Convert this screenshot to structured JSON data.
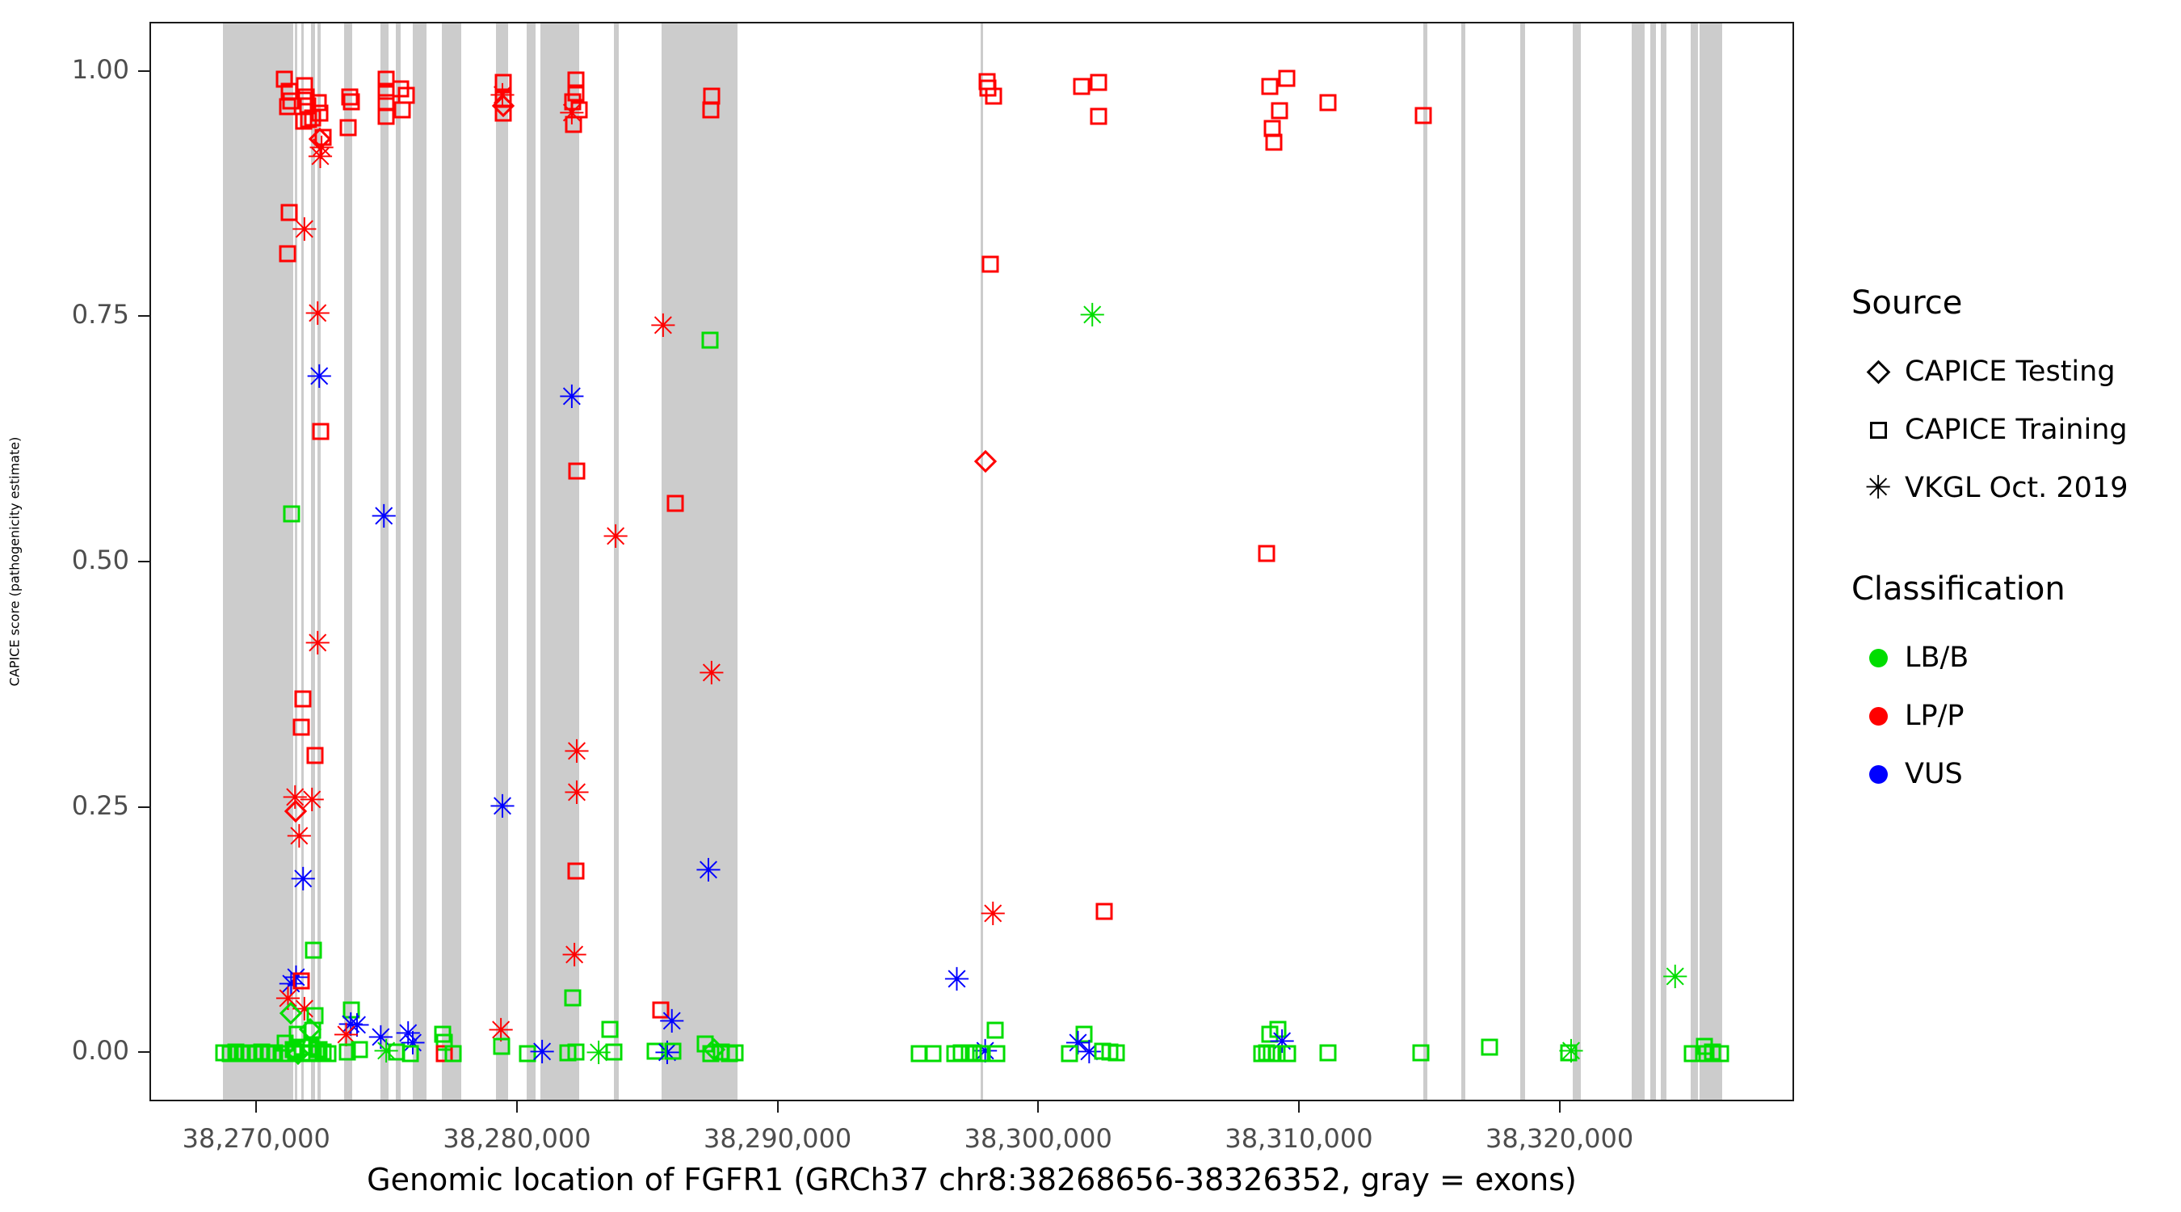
{
  "figure": {
    "x_axis_title": "Genomic location of FGFR1 (GRCh37 chr8:38268656-38326352, gray = exons)",
    "y_axis_title": "CAPICE score (pathogenicity estimate)"
  },
  "legend": {
    "source_title": "Source",
    "source_items": [
      {
        "label": "CAPICE Testing",
        "shape": "diamond"
      },
      {
        "label": "CAPICE Training",
        "shape": "square"
      },
      {
        "label": "VKGL Oct. 2019",
        "shape": "asterisk"
      }
    ],
    "classification_title": "Classification",
    "classification_items": [
      {
        "label": "LB/B",
        "color": "#00dd00"
      },
      {
        "label": "LP/P",
        "color": "#ff0000"
      },
      {
        "label": "VUS",
        "color": "#0000ff"
      }
    ]
  },
  "chart_data": {
    "type": "scatter",
    "xlabel": "Genomic location of FGFR1 (GRCh37 chr8:38268656-38326352, gray = exons)",
    "ylabel": "CAPICE score (pathogenicity estimate)",
    "x_domain": [
      38265900,
      38329000
    ],
    "y_domain": [
      -0.05,
      1.05
    ],
    "grid": false,
    "legend_position": "right",
    "x_ticks": [
      {
        "value": 38270000,
        "label": "38,270,000"
      },
      {
        "value": 38280000,
        "label": "38,280,000"
      },
      {
        "value": 38290000,
        "label": "38,290,000"
      },
      {
        "value": 38300000,
        "label": "38,300,000"
      },
      {
        "value": 38310000,
        "label": "38,310,000"
      },
      {
        "value": 38320000,
        "label": "38,320,000"
      }
    ],
    "y_ticks": [
      {
        "value": 0.0,
        "label": "0.00"
      },
      {
        "value": 0.25,
        "label": "0.25"
      },
      {
        "value": 0.5,
        "label": "0.50"
      },
      {
        "value": 0.75,
        "label": "0.75"
      },
      {
        "value": 1.0,
        "label": "1.00"
      }
    ],
    "exon_color": "#cccccc",
    "exons": [
      [
        38268656,
        38271350
      ],
      [
        38271430,
        38271520
      ],
      [
        38271650,
        38271760
      ],
      [
        38272050,
        38272200
      ],
      [
        38272290,
        38272420
      ],
      [
        38273300,
        38273620
      ],
      [
        38274700,
        38275020
      ],
      [
        38275300,
        38275480
      ],
      [
        38275950,
        38276480
      ],
      [
        38277050,
        38277800
      ],
      [
        38279130,
        38279600
      ],
      [
        38280300,
        38280640
      ],
      [
        38280850,
        38282330
      ],
      [
        38283660,
        38283850
      ],
      [
        38285480,
        38288400
      ],
      [
        38297720,
        38297820
      ],
      [
        38314700,
        38314880
      ],
      [
        38316160,
        38316330
      ],
      [
        38318420,
        38318620
      ],
      [
        38320440,
        38320760
      ],
      [
        38322700,
        38323200
      ],
      [
        38323410,
        38323630
      ],
      [
        38323810,
        38324030
      ],
      [
        38324960,
        38325240
      ],
      [
        38325300,
        38326170
      ]
    ],
    "class_colors": {
      "b": "#00dd00",
      "p": "#ff0000",
      "v": "#0000ff"
    },
    "class_names": {
      "b": "LB/B",
      "p": "LP/P",
      "v": "VUS"
    },
    "source_shapes": {
      "d": "diamond",
      "s": "square",
      "a": "asterisk"
    },
    "source_names": {
      "d": "CAPICE Testing",
      "s": "CAPICE Training",
      "a": "VKGL Oct. 2019"
    },
    "point_format": [
      "genomic_position",
      "capice_score",
      "classification",
      "source"
    ],
    "points": [
      [
        38271000,
        0.993,
        "p",
        "s"
      ],
      [
        38271210,
        0.981,
        "p",
        "s"
      ],
      [
        38271780,
        0.987,
        "p",
        "s"
      ],
      [
        38271270,
        0.971,
        "p",
        "s"
      ],
      [
        38271150,
        0.965,
        "p",
        "s"
      ],
      [
        38271840,
        0.975,
        "p",
        "s"
      ],
      [
        38271900,
        0.966,
        "p",
        "s"
      ],
      [
        38272300,
        0.969,
        "p",
        "s"
      ],
      [
        38272390,
        0.959,
        "p",
        "s"
      ],
      [
        38271750,
        0.95,
        "p",
        "s"
      ],
      [
        38271930,
        0.952,
        "p",
        "s"
      ],
      [
        38272090,
        0.954,
        "p",
        "s"
      ],
      [
        38272500,
        0.934,
        "p",
        "s"
      ],
      [
        38272390,
        0.932,
        "p",
        "d"
      ],
      [
        38272440,
        0.922,
        "p",
        "a"
      ],
      [
        38272390,
        0.913,
        "p",
        "a"
      ],
      [
        38273530,
        0.975,
        "p",
        "s"
      ],
      [
        38273590,
        0.97,
        "p",
        "s"
      ],
      [
        38273470,
        0.944,
        "p",
        "s"
      ],
      [
        38274920,
        0.993,
        "p",
        "s"
      ],
      [
        38274920,
        0.981,
        "p",
        "s"
      ],
      [
        38275480,
        0.983,
        "p",
        "s"
      ],
      [
        38275700,
        0.977,
        "p",
        "s"
      ],
      [
        38274920,
        0.969,
        "p",
        "s"
      ],
      [
        38275540,
        0.962,
        "p",
        "s"
      ],
      [
        38274920,
        0.955,
        "p",
        "s"
      ],
      [
        38271210,
        0.857,
        "p",
        "s"
      ],
      [
        38271780,
        0.839,
        "p",
        "a"
      ],
      [
        38271150,
        0.815,
        "p",
        "s"
      ],
      [
        38272290,
        0.754,
        "p",
        "a"
      ],
      [
        38272350,
        0.689,
        "v",
        "a"
      ],
      [
        38272420,
        0.634,
        "p",
        "s"
      ],
      [
        38271300,
        0.55,
        "b",
        "s"
      ],
      [
        38274830,
        0.547,
        "v",
        "a"
      ],
      [
        38272290,
        0.418,
        "p",
        "a"
      ],
      [
        38271730,
        0.362,
        "p",
        "s"
      ],
      [
        38271670,
        0.333,
        "p",
        "s"
      ],
      [
        38272200,
        0.304,
        "p",
        "s"
      ],
      [
        38271420,
        0.26,
        "p",
        "a"
      ],
      [
        38272070,
        0.258,
        "p",
        "a"
      ],
      [
        38271460,
        0.247,
        "p",
        "d"
      ],
      [
        38271580,
        0.221,
        "p",
        "a"
      ],
      [
        38271730,
        0.177,
        "v",
        "a"
      ],
      [
        38272140,
        0.106,
        "b",
        "s"
      ],
      [
        38271460,
        0.077,
        "v",
        "a"
      ],
      [
        38271270,
        0.07,
        "v",
        "a"
      ],
      [
        38271670,
        0.074,
        "p",
        "s"
      ],
      [
        38271150,
        0.055,
        "p",
        "a"
      ],
      [
        38271780,
        0.045,
        "p",
        "a"
      ],
      [
        38271270,
        0.041,
        "b",
        "d"
      ],
      [
        38272200,
        0.039,
        "b",
        "s"
      ],
      [
        38271050,
        0.011,
        "b",
        "s"
      ],
      [
        38271520,
        0.02,
        "b",
        "s"
      ],
      [
        38272000,
        0.025,
        "b",
        "d"
      ],
      [
        38272100,
        0.024,
        "b",
        "s"
      ],
      [
        38271700,
        0.007,
        "b",
        "s"
      ],
      [
        38272050,
        0.007,
        "b",
        "s"
      ],
      [
        38272350,
        0.004,
        "b",
        "s"
      ],
      [
        38271350,
        0.004,
        "b",
        "s"
      ],
      [
        38268700,
        0.001,
        "b",
        "s"
      ],
      [
        38268950,
        0.0,
        "b",
        "s"
      ],
      [
        38269150,
        0.002,
        "b",
        "s"
      ],
      [
        38269400,
        0.0,
        "b",
        "s"
      ],
      [
        38269650,
        0.001,
        "b",
        "s"
      ],
      [
        38269900,
        0.0,
        "b",
        "s"
      ],
      [
        38270150,
        0.002,
        "b",
        "s"
      ],
      [
        38270400,
        0.0,
        "b",
        "s"
      ],
      [
        38270650,
        0.001,
        "b",
        "s"
      ],
      [
        38270900,
        0.0,
        "b",
        "s"
      ],
      [
        38271150,
        0.0,
        "b",
        "s"
      ],
      [
        38271450,
        0.002,
        "b",
        "s"
      ],
      [
        38271550,
        0.0,
        "b",
        "d"
      ],
      [
        38271700,
        0.0,
        "b",
        "s"
      ],
      [
        38271950,
        0.001,
        "b",
        "s"
      ],
      [
        38272250,
        0.0,
        "b",
        "s"
      ],
      [
        38272500,
        0.002,
        "b",
        "s"
      ],
      [
        38272700,
        0.0,
        "b",
        "s"
      ],
      [
        38273590,
        0.045,
        "b",
        "s"
      ],
      [
        38273560,
        0.029,
        "v",
        "a"
      ],
      [
        38273800,
        0.028,
        "v",
        "a"
      ],
      [
        38273380,
        0.018,
        "p",
        "a"
      ],
      [
        38273440,
        0.002,
        "b",
        "s"
      ],
      [
        38273900,
        0.004,
        "b",
        "s"
      ],
      [
        38274710,
        0.016,
        "v",
        "a"
      ],
      [
        38274920,
        0.002,
        "b",
        "a"
      ],
      [
        38275760,
        0.02,
        "v",
        "a"
      ],
      [
        38275940,
        0.01,
        "v",
        "a"
      ],
      [
        38275330,
        0.002,
        "b",
        "s"
      ],
      [
        38275850,
        0.0,
        "b",
        "s"
      ],
      [
        38277100,
        0.02,
        "b",
        "s"
      ],
      [
        38277150,
        0.012,
        "b",
        "s"
      ],
      [
        38277150,
        0.0,
        "p",
        "s"
      ],
      [
        38277500,
        0.0,
        "b",
        "s"
      ],
      [
        38279400,
        0.99,
        "p",
        "s"
      ],
      [
        38279380,
        0.976,
        "p",
        "a"
      ],
      [
        38279410,
        0.973,
        "p",
        "s"
      ],
      [
        38279400,
        0.966,
        "p",
        "d"
      ],
      [
        38279400,
        0.959,
        "p",
        "s"
      ],
      [
        38279380,
        0.251,
        "v",
        "a"
      ],
      [
        38279320,
        0.023,
        "p",
        "a"
      ],
      [
        38279350,
        0.008,
        "b",
        "s"
      ],
      [
        38280340,
        0.0,
        "b",
        "s"
      ],
      [
        38280900,
        0.001,
        "v",
        "a"
      ],
      [
        38282200,
        0.992,
        "p",
        "s"
      ],
      [
        38282200,
        0.979,
        "p",
        "s"
      ],
      [
        38282090,
        0.97,
        "p",
        "s"
      ],
      [
        38282040,
        0.958,
        "p",
        "a"
      ],
      [
        38282320,
        0.962,
        "p",
        "s"
      ],
      [
        38282110,
        0.947,
        "p",
        "s"
      ],
      [
        38282040,
        0.669,
        "v",
        "a"
      ],
      [
        38282230,
        0.594,
        "p",
        "s"
      ],
      [
        38282230,
        0.307,
        "p",
        "a"
      ],
      [
        38282230,
        0.265,
        "p",
        "a"
      ],
      [
        38282200,
        0.186,
        "p",
        "s"
      ],
      [
        38282140,
        0.1,
        "p",
        "a"
      ],
      [
        38282070,
        0.057,
        "b",
        "s"
      ],
      [
        38281890,
        0.001,
        "b",
        "s"
      ],
      [
        38282200,
        0.002,
        "b",
        "s"
      ],
      [
        38283720,
        0.526,
        "p",
        "a"
      ],
      [
        38283500,
        0.025,
        "b",
        "s"
      ],
      [
        38283070,
        0.0,
        "b",
        "a"
      ],
      [
        38283650,
        0.002,
        "b",
        "s"
      ],
      [
        38285540,
        0.741,
        "p",
        "a"
      ],
      [
        38286010,
        0.561,
        "p",
        "s"
      ],
      [
        38285450,
        0.045,
        "p",
        "s"
      ],
      [
        38285880,
        0.032,
        "v",
        "a"
      ],
      [
        38285230,
        0.003,
        "b",
        "s"
      ],
      [
        38285700,
        0.0,
        "v",
        "a"
      ],
      [
        38285910,
        0.003,
        "b",
        "s"
      ],
      [
        38287400,
        0.976,
        "p",
        "s"
      ],
      [
        38287370,
        0.962,
        "p",
        "s"
      ],
      [
        38287340,
        0.727,
        "b",
        "s"
      ],
      [
        38287400,
        0.387,
        "p",
        "a"
      ],
      [
        38287280,
        0.186,
        "v",
        "a"
      ],
      [
        38287150,
        0.01,
        "b",
        "s"
      ],
      [
        38287370,
        0.0,
        "b",
        "s"
      ],
      [
        38287500,
        0.004,
        "b",
        "d"
      ],
      [
        38287770,
        0.002,
        "b",
        "s"
      ],
      [
        38288080,
        0.0,
        "b",
        "s"
      ],
      [
        38288300,
        0.001,
        "b",
        "s"
      ],
      [
        38297990,
        0.991,
        "p",
        "s"
      ],
      [
        38298020,
        0.984,
        "p",
        "s"
      ],
      [
        38298240,
        0.976,
        "p",
        "s"
      ],
      [
        38301610,
        0.986,
        "p",
        "s"
      ],
      [
        38302260,
        0.99,
        "p",
        "s"
      ],
      [
        38302260,
        0.955,
        "p",
        "s"
      ],
      [
        38298110,
        0.805,
        "p",
        "s"
      ],
      [
        38302010,
        0.752,
        "b",
        "a"
      ],
      [
        38297930,
        0.604,
        "p",
        "d"
      ],
      [
        38298200,
        0.142,
        "p",
        "a"
      ],
      [
        38302480,
        0.145,
        "p",
        "s"
      ],
      [
        38296810,
        0.075,
        "v",
        "a"
      ],
      [
        38298300,
        0.024,
        "b",
        "s"
      ],
      [
        38297900,
        0.002,
        "v",
        "a"
      ],
      [
        38295360,
        0.0,
        "b",
        "s"
      ],
      [
        38295910,
        0.0,
        "b",
        "s"
      ],
      [
        38296750,
        0.0,
        "b",
        "s"
      ],
      [
        38297000,
        0.001,
        "b",
        "s"
      ],
      [
        38297280,
        0.0,
        "b",
        "s"
      ],
      [
        38297460,
        0.001,
        "b",
        "s"
      ],
      [
        38297740,
        0.0,
        "b",
        "s"
      ],
      [
        38298360,
        0.0,
        "b",
        "s"
      ],
      [
        38301700,
        0.02,
        "b",
        "s"
      ],
      [
        38301460,
        0.01,
        "v",
        "a"
      ],
      [
        38301890,
        0.001,
        "v",
        "a"
      ],
      [
        38301150,
        0.0,
        "b",
        "s"
      ],
      [
        38302420,
        0.003,
        "b",
        "s"
      ],
      [
        38302690,
        0.002,
        "b",
        "s"
      ],
      [
        38302940,
        0.001,
        "b",
        "s"
      ],
      [
        38309470,
        0.994,
        "p",
        "s"
      ],
      [
        38308820,
        0.986,
        "p",
        "s"
      ],
      [
        38309200,
        0.961,
        "p",
        "s"
      ],
      [
        38308920,
        0.943,
        "p",
        "s"
      ],
      [
        38308980,
        0.929,
        "p",
        "s"
      ],
      [
        38311050,
        0.969,
        "p",
        "s"
      ],
      [
        38308700,
        0.51,
        "p",
        "s"
      ],
      [
        38308820,
        0.02,
        "b",
        "s"
      ],
      [
        38309130,
        0.025,
        "b",
        "s"
      ],
      [
        38309290,
        0.012,
        "v",
        "a"
      ],
      [
        38308510,
        0.0,
        "b",
        "s"
      ],
      [
        38308700,
        0.001,
        "b",
        "s"
      ],
      [
        38308900,
        0.0,
        "b",
        "s"
      ],
      [
        38309100,
        0.0,
        "b",
        "s"
      ],
      [
        38309510,
        0.0,
        "b",
        "s"
      ],
      [
        38311050,
        0.001,
        "b",
        "s"
      ],
      [
        38314700,
        0.956,
        "p",
        "s"
      ],
      [
        38314620,
        0.001,
        "b",
        "s"
      ],
      [
        38317250,
        0.007,
        "b",
        "s"
      ],
      [
        38320380,
        0.002,
        "b",
        "a"
      ],
      [
        38320300,
        0.001,
        "b",
        "s"
      ],
      [
        38324370,
        0.078,
        "b",
        "a"
      ],
      [
        38325020,
        0.0,
        "b",
        "s"
      ],
      [
        38325490,
        0.008,
        "b",
        "s"
      ],
      [
        38325460,
        0.0,
        "b",
        "s"
      ],
      [
        38325800,
        0.002,
        "b",
        "s"
      ],
      [
        38326110,
        0.0,
        "b",
        "s"
      ]
    ]
  }
}
